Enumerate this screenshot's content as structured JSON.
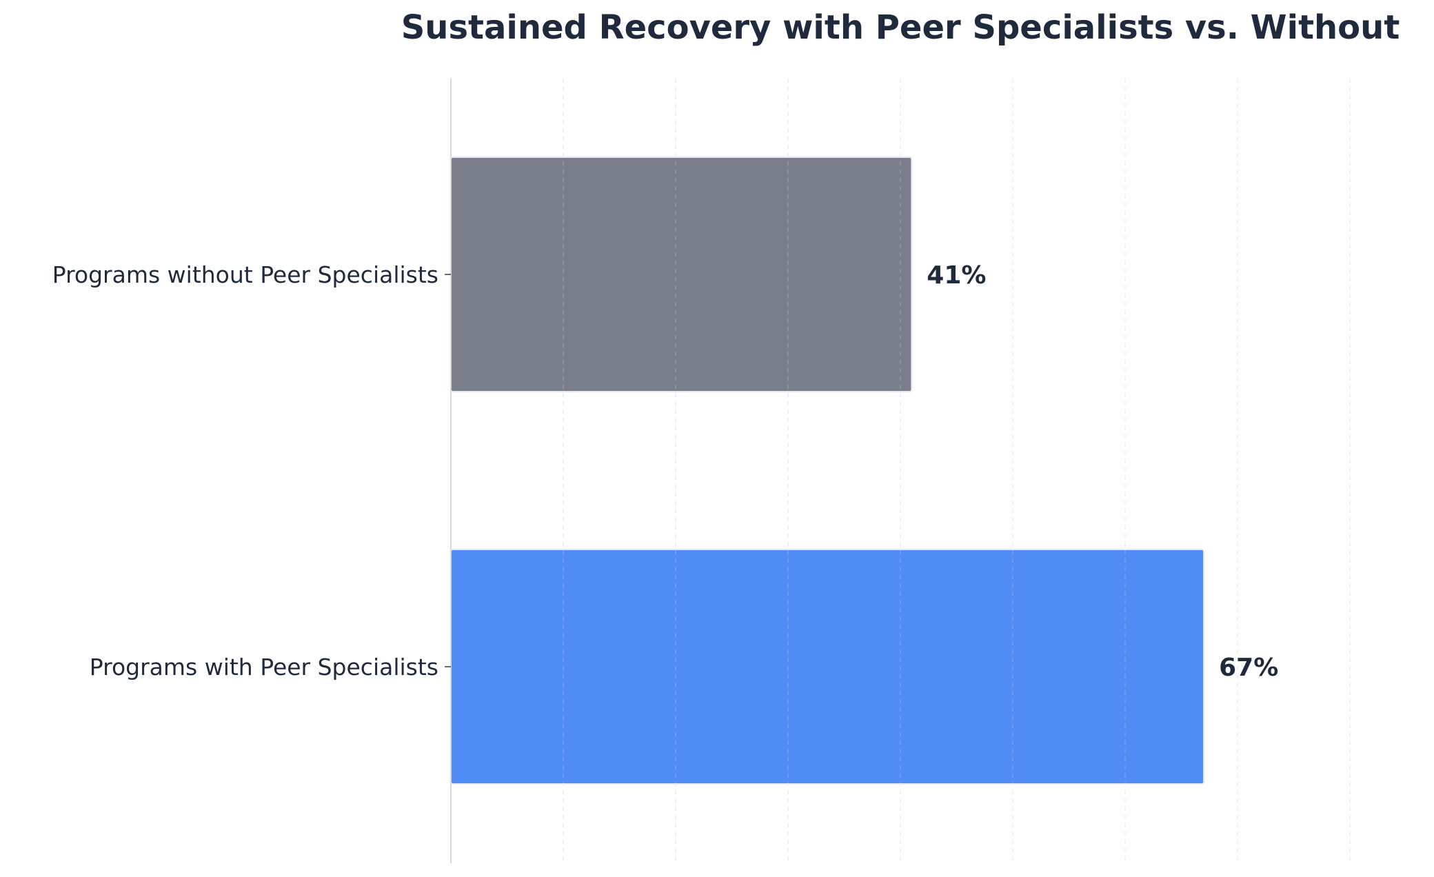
{
  "chart_data": {
    "type": "bar",
    "orientation": "horizontal",
    "title": "Sustained Recovery with Peer Specialists vs. Without",
    "xlabel": "",
    "ylabel": "",
    "categories": [
      "Programs without Peer Specialists",
      "Programs with Peer Specialists"
    ],
    "values": [
      41,
      67
    ],
    "value_labels": [
      "41%",
      "67%"
    ],
    "colors": [
      "#797e8a",
      "#4f8cf3"
    ],
    "xlim": [
      0,
      80
    ],
    "x_grid_step": 10,
    "grid": true,
    "x_tick_labels_shown": false,
    "legend": "none"
  }
}
